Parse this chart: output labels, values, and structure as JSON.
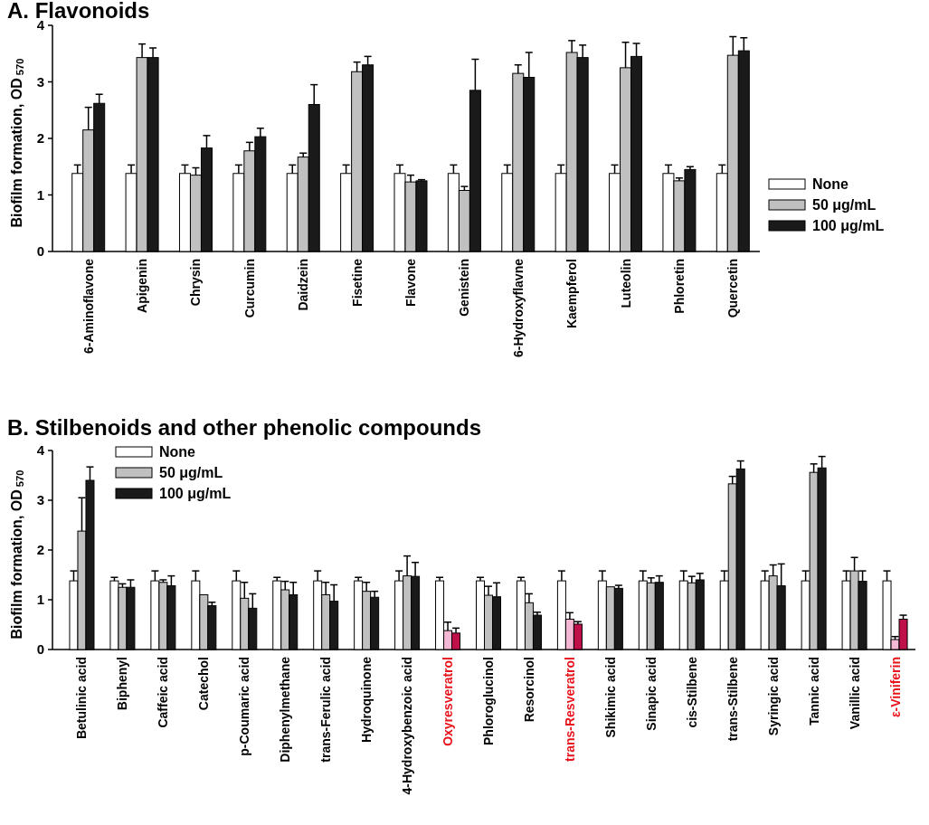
{
  "chart_data": [
    {
      "type": "bar",
      "title": "A. Flavonoids",
      "ylabel": "Biofilm formation, OD$_{570}$",
      "categories": [
        "6-Aminoflavone",
        "Apigenin",
        "Chrysin",
        "Curcumin",
        "Daidzein",
        "Fisetine",
        "Flavone",
        "Genistein",
        "6-Hydroxyflavne",
        "Kaempferol",
        "Luteolin",
        "Phloretin",
        "Quercetin"
      ],
      "ylim": [
        0,
        4
      ],
      "yticks": [
        0,
        1,
        2,
        3,
        4
      ],
      "grid": false,
      "legend": "right",
      "series": [
        {
          "name": "None",
          "color": "#ffffff",
          "values": [
            1.38,
            1.38,
            1.38,
            1.38,
            1.38,
            1.38,
            1.38,
            1.38,
            1.38,
            1.38,
            1.38,
            1.38,
            1.38
          ],
          "errors": [
            [
              1.38,
              1.53
            ],
            [
              1.38,
              1.53
            ],
            [
              1.38,
              1.53
            ],
            [
              1.38,
              1.53
            ],
            [
              1.38,
              1.53
            ],
            [
              1.38,
              1.53
            ],
            [
              1.38,
              1.53
            ],
            [
              1.38,
              1.53
            ],
            [
              1.38,
              1.53
            ],
            [
              1.38,
              1.53
            ],
            [
              1.38,
              1.53
            ],
            [
              1.38,
              1.53
            ],
            [
              1.38,
              1.53
            ]
          ]
        },
        {
          "name": "50 μg/mL",
          "color": "#c0c0c0",
          "values": [
            2.15,
            3.43,
            1.35,
            1.78,
            1.67,
            3.18,
            1.23,
            1.08,
            3.15,
            3.52,
            3.25,
            1.25,
            3.47
          ],
          "errors": [
            [
              2.15,
              2.55
            ],
            [
              3.43,
              3.67
            ],
            [
              1.35,
              1.48
            ],
            [
              1.78,
              1.93
            ],
            [
              1.67,
              1.74
            ],
            [
              3.18,
              3.35
            ],
            [
              1.23,
              1.35
            ],
            [
              1.08,
              1.15
            ],
            [
              3.15,
              3.3
            ],
            [
              3.52,
              3.73
            ],
            [
              3.25,
              3.7
            ],
            [
              1.25,
              1.3
            ],
            [
              3.47,
              3.8
            ]
          ]
        },
        {
          "name": "100 μg/mL",
          "color": "#1a1a1a",
          "values": [
            2.62,
            3.43,
            1.83,
            2.03,
            2.6,
            3.3,
            1.25,
            2.85,
            3.08,
            3.43,
            3.45,
            1.45,
            3.55
          ],
          "errors": [
            [
              2.62,
              2.78
            ],
            [
              3.43,
              3.6
            ],
            [
              1.83,
              2.05
            ],
            [
              2.03,
              2.18
            ],
            [
              2.6,
              2.95
            ],
            [
              3.3,
              3.45
            ],
            [
              1.25,
              1.27
            ],
            [
              2.85,
              3.4
            ],
            [
              3.08,
              3.52
            ],
            [
              3.43,
              3.65
            ],
            [
              3.45,
              3.68
            ],
            [
              1.45,
              1.5
            ],
            [
              3.55,
              3.78
            ]
          ]
        }
      ]
    },
    {
      "type": "bar",
      "title": "B. Stilbenoids and other phenolic compounds",
      "ylabel": "Biofilm formation, OD$_{570}$",
      "categories": [
        "Betulinic acid",
        "Biphenyl",
        "Caffeic acid",
        "Catechol",
        "p-Coumaric acid",
        "Diphenylmethane",
        "trans-Ferulic acid",
        "Hydroquinone",
        "4-Hydroxybenzoic acid",
        "Oxyresveratrol",
        "Phloroglucinol",
        "Resorcinol",
        "trans-Resveratrol",
        "Shikimic acid",
        "Sinapic acid",
        "cis-Stilbene",
        "trans-Stilbene",
        "Syringic acid",
        "Tannic acid",
        "Vanillic acid",
        "ε-Viniferin"
      ],
      "ylim": [
        0,
        4
      ],
      "yticks": [
        0,
        1,
        2,
        3,
        4
      ],
      "grid": false,
      "legend": "top left",
      "series": [
        {
          "name": "None",
          "color": "#ffffff",
          "values": [
            1.38,
            1.38,
            1.38,
            1.38,
            1.38,
            1.38,
            1.38,
            1.38,
            1.38,
            1.38,
            1.38,
            1.38,
            1.38,
            1.38,
            1.38,
            1.38,
            1.38,
            1.38,
            1.38,
            1.38,
            1.38
          ],
          "errors": [
            [
              1.38,
              1.58
            ],
            [
              1.38,
              1.45
            ],
            [
              1.38,
              1.58
            ],
            [
              1.38,
              1.58
            ],
            [
              1.38,
              1.58
            ],
            [
              1.38,
              1.45
            ],
            [
              1.38,
              1.58
            ],
            [
              1.38,
              1.45
            ],
            [
              1.38,
              1.58
            ],
            [
              1.38,
              1.45
            ],
            [
              1.38,
              1.45
            ],
            [
              1.38,
              1.45
            ],
            [
              1.38,
              1.58
            ],
            [
              1.38,
              1.58
            ],
            [
              1.38,
              1.58
            ],
            [
              1.38,
              1.58
            ],
            [
              1.38,
              1.58
            ],
            [
              1.38,
              1.58
            ],
            [
              1.38,
              1.58
            ],
            [
              1.38,
              1.58
            ],
            [
              1.38,
              1.58
            ]
          ]
        },
        {
          "name": "50 μg/mL",
          "color": "#c0c0c0",
          "colors": [
            "#c0c0c0",
            "#c0c0c0",
            "#c0c0c0",
            "#c0c0c0",
            "#c0c0c0",
            "#c0c0c0",
            "#c0c0c0",
            "#c0c0c0",
            "#c0c0c0",
            "#f4b8d4",
            "#c0c0c0",
            "#c0c0c0",
            "#f4b8d4",
            "#c0c0c0",
            "#c0c0c0",
            "#c0c0c0",
            "#c0c0c0",
            "#c0c0c0",
            "#c0c0c0",
            "#c0c0c0",
            "#f4b8d4"
          ],
          "values": [
            2.38,
            1.25,
            1.35,
            1.1,
            1.03,
            1.2,
            1.1,
            1.17,
            1.48,
            0.38,
            1.09,
            0.94,
            0.61,
            1.26,
            1.34,
            1.34,
            3.33,
            1.48,
            3.56,
            1.58,
            0.2
          ],
          "errors": [
            [
              2.38,
              3.05
            ],
            [
              1.25,
              1.32
            ],
            [
              1.35,
              1.4
            ],
            null,
            [
              1.03,
              1.35
            ],
            [
              1.2,
              1.37
            ],
            [
              1.1,
              1.35
            ],
            [
              1.17,
              1.35
            ],
            [
              1.48,
              1.88
            ],
            [
              0.38,
              0.55
            ],
            [
              1.09,
              1.27
            ],
            [
              0.94,
              1.12
            ],
            [
              0.61,
              0.74
            ],
            null,
            [
              1.34,
              1.44
            ],
            [
              1.34,
              1.47
            ],
            [
              3.33,
              3.48
            ],
            [
              1.48,
              1.7
            ],
            [
              3.56,
              3.73
            ],
            [
              1.58,
              1.85
            ],
            [
              0.2,
              0.26
            ]
          ]
        },
        {
          "name": "100 μg/mL",
          "color": "#1a1a1a",
          "colors": [
            "#1a1a1a",
            "#1a1a1a",
            "#1a1a1a",
            "#1a1a1a",
            "#1a1a1a",
            "#1a1a1a",
            "#1a1a1a",
            "#1a1a1a",
            "#1a1a1a",
            "#c0104a",
            "#1a1a1a",
            "#1a1a1a",
            "#c0104a",
            "#1a1a1a",
            "#1a1a1a",
            "#1a1a1a",
            "#1a1a1a",
            "#1a1a1a",
            "#1a1a1a",
            "#1a1a1a",
            "#c0104a"
          ],
          "values": [
            3.4,
            1.25,
            1.28,
            0.88,
            0.83,
            1.1,
            0.97,
            1.05,
            1.47,
            0.33,
            1.06,
            0.69,
            0.51,
            1.23,
            1.35,
            1.4,
            3.63,
            1.28,
            3.65,
            1.37,
            0.61
          ],
          "errors": [
            [
              3.4,
              3.67
            ],
            [
              1.25,
              1.4
            ],
            [
              1.28,
              1.48
            ],
            [
              0.88,
              0.95
            ],
            [
              0.83,
              1.12
            ],
            [
              1.1,
              1.35
            ],
            [
              0.97,
              1.3
            ],
            [
              1.05,
              1.17
            ],
            [
              1.47,
              1.75
            ],
            [
              0.33,
              0.43
            ],
            [
              1.06,
              1.34
            ],
            [
              0.69,
              0.75
            ],
            [
              0.51,
              0.56
            ],
            [
              1.23,
              1.29
            ],
            [
              1.35,
              1.48
            ],
            [
              1.4,
              1.53
            ],
            [
              3.63,
              3.79
            ],
            [
              1.28,
              1.72
            ],
            [
              3.65,
              3.88
            ],
            [
              1.37,
              1.58
            ],
            [
              0.61,
              0.69
            ]
          ]
        }
      ]
    }
  ]
}
